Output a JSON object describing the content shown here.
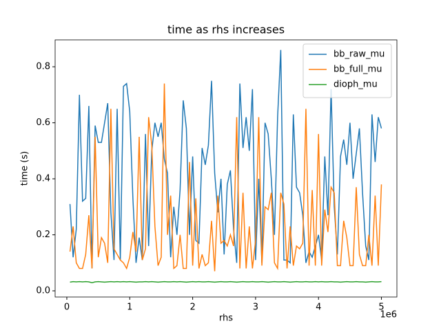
{
  "chart_data": {
    "type": "line",
    "title": "time as rhs increases",
    "x_label": "rhs",
    "y_label": "time (s)",
    "x_offset_label": "1e6",
    "x": [
      50000,
      100000,
      150000,
      200000,
      250000,
      300000,
      350000,
      400000,
      450000,
      500000,
      550000,
      600000,
      650000,
      700000,
      750000,
      800000,
      850000,
      900000,
      950000,
      1000000,
      1050000,
      1100000,
      1150000,
      1200000,
      1250000,
      1300000,
      1350000,
      1400000,
      1450000,
      1500000,
      1550000,
      1600000,
      1650000,
      1700000,
      1750000,
      1800000,
      1850000,
      1900000,
      1950000,
      2000000,
      2050000,
      2100000,
      2150000,
      2200000,
      2250000,
      2300000,
      2350000,
      2400000,
      2450000,
      2500000,
      2550000,
      2600000,
      2650000,
      2700000,
      2750000,
      2800000,
      2850000,
      2900000,
      2950000,
      3000000,
      3050000,
      3100000,
      3150000,
      3200000,
      3250000,
      3300000,
      3350000,
      3400000,
      3450000,
      3500000,
      3550000,
      3600000,
      3650000,
      3700000,
      3750000,
      3800000,
      3850000,
      3900000,
      3950000,
      4000000,
      4050000,
      4100000,
      4150000,
      4200000,
      4250000,
      4300000,
      4350000,
      4400000,
      4450000,
      4500000,
      4550000,
      4600000,
      4650000,
      4700000,
      4750000,
      4800000,
      4850000,
      4900000,
      4950000,
      5000000
    ],
    "series": [
      {
        "name": "bb_raw_mu",
        "color": "#1f77b4",
        "values": [
          0.31,
          0.12,
          0.22,
          0.7,
          0.32,
          0.33,
          0.66,
          0.08,
          0.59,
          0.53,
          0.53,
          0.6,
          0.67,
          0.28,
          0.11,
          0.65,
          0.11,
          0.73,
          0.74,
          0.64,
          0.33,
          0.1,
          0.19,
          0.11,
          0.56,
          0.16,
          0.5,
          0.6,
          0.55,
          0.6,
          0.47,
          0.42,
          0.12,
          0.3,
          0.2,
          0.36,
          0.68,
          0.58,
          0.2,
          0.48,
          0.18,
          0.17,
          0.51,
          0.45,
          0.52,
          0.75,
          0.42,
          0.28,
          0.4,
          0.13,
          0.38,
          0.43,
          0.22,
          0.1,
          0.74,
          0.51,
          0.62,
          0.5,
          0.72,
          0.11,
          0.4,
          0.1,
          0.6,
          0.56,
          0.4,
          0.2,
          0.62,
          0.86,
          0.11,
          0.11,
          0.1,
          0.63,
          0.37,
          0.35,
          0.27,
          0.1,
          0.14,
          0.12,
          0.16,
          0.2,
          0.11,
          0.48,
          0.27,
          0.72,
          0.3,
          0.13,
          0.48,
          0.54,
          0.45,
          0.6,
          0.4,
          0.49,
          0.58,
          0.35,
          0.16,
          0.11,
          0.63,
          0.46,
          0.62,
          0.58
        ]
      },
      {
        "name": "bb_full_mu",
        "color": "#ff7f0e",
        "values": [
          0.14,
          0.23,
          0.1,
          0.08,
          0.08,
          0.13,
          0.27,
          0.08,
          0.55,
          0.12,
          0.19,
          0.17,
          0.1,
          0.65,
          0.15,
          0.13,
          0.11,
          0.1,
          0.08,
          0.12,
          0.21,
          0.14,
          0.55,
          0.11,
          0.15,
          0.62,
          0.52,
          0.23,
          0.09,
          0.12,
          0.74,
          0.2,
          0.34,
          0.08,
          0.09,
          0.2,
          0.08,
          0.08,
          0.46,
          0.09,
          0.33,
          0.08,
          0.13,
          0.09,
          0.1,
          0.25,
          0.07,
          0.34,
          0.17,
          0.18,
          0.16,
          0.2,
          0.16,
          0.62,
          0.08,
          0.35,
          0.08,
          0.23,
          0.08,
          0.18,
          0.62,
          0.09,
          0.3,
          0.29,
          0.35,
          0.1,
          0.08,
          0.35,
          0.31,
          0.08,
          0.23,
          0.09,
          0.16,
          0.15,
          0.17,
          0.65,
          0.09,
          0.36,
          0.09,
          0.56,
          0.09,
          0.29,
          0.21,
          0.37,
          0.35,
          0.09,
          0.09,
          0.25,
          0.19,
          0.09,
          0.09,
          0.37,
          0.13,
          0.09,
          0.09,
          0.2,
          0.09,
          0.34,
          0.09,
          0.38
        ]
      },
      {
        "name": "dioph_mu",
        "color": "#2ca02c",
        "values": [
          0.031,
          0.033,
          0.032,
          0.033,
          0.032,
          0.033,
          0.032,
          0.029,
          0.032,
          0.033,
          0.032,
          0.031,
          0.032,
          0.033,
          0.032,
          0.033,
          0.032,
          0.033,
          0.032,
          0.033,
          0.032,
          0.031,
          0.032,
          0.032,
          0.033,
          0.032,
          0.033,
          0.032,
          0.031,
          0.032,
          0.033,
          0.032,
          0.032,
          0.033,
          0.032,
          0.033,
          0.032,
          0.031,
          0.032,
          0.033,
          0.032,
          0.033,
          0.032,
          0.032,
          0.033,
          0.032,
          0.031,
          0.032,
          0.033,
          0.032,
          0.032,
          0.033,
          0.032,
          0.031,
          0.032,
          0.033,
          0.032,
          0.032,
          0.033,
          0.032,
          0.032,
          0.033,
          0.032,
          0.031,
          0.032,
          0.033,
          0.032,
          0.032,
          0.033,
          0.032,
          0.031,
          0.032,
          0.033,
          0.032,
          0.032,
          0.033,
          0.032,
          0.032,
          0.033,
          0.032,
          0.033,
          0.032,
          0.032,
          0.033,
          0.032,
          0.032,
          0.031,
          0.032,
          0.033,
          0.032,
          0.032,
          0.033,
          0.032,
          0.032,
          0.031,
          0.032,
          0.033,
          0.032,
          0.032,
          0.033
        ]
      }
    ],
    "xlim": [
      -186000,
      5246000
    ],
    "xticks": [
      0,
      {
        "value": 1000000,
        "label": "1"
      },
      {
        "value": 2000000,
        "label": "2"
      },
      {
        "value": 3000000,
        "label": "3"
      },
      {
        "value": 4000000,
        "label": "4"
      },
      {
        "value": 5000000,
        "label": "5"
      }
    ],
    "ylim": [
      -0.022,
      0.896
    ],
    "yticks": [
      {
        "value": 0,
        "label": "0.0"
      },
      0.2,
      0.4,
      0.6,
      0.8
    ],
    "grid": false,
    "legend": "upper-right"
  }
}
